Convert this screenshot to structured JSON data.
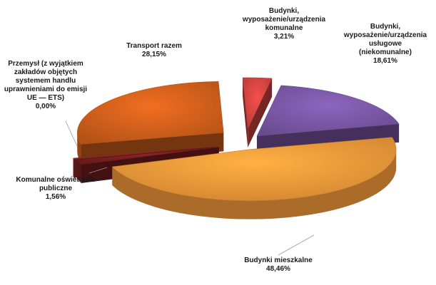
{
  "chart_data": {
    "type": "pie",
    "title": "",
    "exploded": true,
    "three_d": true,
    "slices": [
      {
        "name": "Budynki, wyposażenie/urządzenia komunalne",
        "label_lines": [
          "Budynki,",
          "wyposażenie/urządzenia",
          "komunalne"
        ],
        "value": 3.21,
        "value_label": "3,21%",
        "color": "#d64541"
      },
      {
        "name": "Budynki, wyposażenie/urządzenia usługowe (niekomunalne)",
        "label_lines": [
          "Budynki,",
          "wyposażenie/urządzenia",
          "usługowe",
          "(niekomunalne)"
        ],
        "value": 18.61,
        "value_label": "18,61%",
        "color": "#7b58a6"
      },
      {
        "name": "Budynki mieszkalne",
        "label_lines": [
          "Budynki mieszkalne"
        ],
        "value": 48.46,
        "value_label": "48,46%",
        "color": "#f59a3a"
      },
      {
        "name": "Komunalne oświetlenie publiczne",
        "label_lines": [
          "Komunalne oświetlenie",
          "publiczne"
        ],
        "value": 1.56,
        "value_label": "1,56%",
        "color": "#7a1f1f"
      },
      {
        "name": "Przemysł (z wyjątkiem zakładów objętych systemem handlu uprawnieniami do emisji UE — ETS)",
        "label_lines": [
          "Przemysł (z wyjątkiem",
          "zakładów objętych",
          "systemem handlu",
          "uprawnieniami do emisji",
          "UE — ETS)"
        ],
        "value": 0.0,
        "value_label": "0,00%",
        "color": "#9a3030"
      },
      {
        "name": "Transport razem",
        "label_lines": [
          "Transport razem"
        ],
        "value": 28.15,
        "value_label": "28,15%",
        "color": "#d2601c"
      }
    ]
  }
}
